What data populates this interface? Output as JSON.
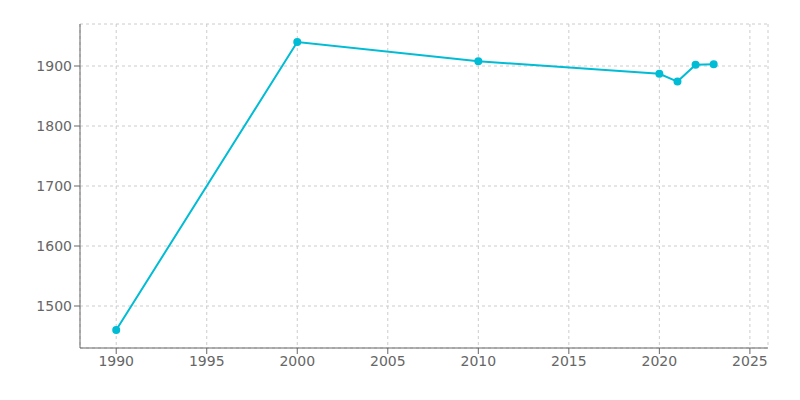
{
  "chart_data": {
    "type": "line",
    "x": [
      1990,
      2000,
      2010,
      2020,
      2021,
      2022,
      2023
    ],
    "values": [
      1460,
      1940,
      1908,
      1887,
      1874,
      1902,
      1903
    ],
    "color": "#00BCD4",
    "marker": "circle",
    "xlim": [
      1988,
      2026
    ],
    "ylim": [
      1430,
      1970
    ],
    "xticks": [
      1990,
      1995,
      2000,
      2005,
      2010,
      2015,
      2020,
      2025
    ],
    "yticks": [
      1500,
      1600,
      1700,
      1800,
      1900
    ],
    "grid": true
  }
}
